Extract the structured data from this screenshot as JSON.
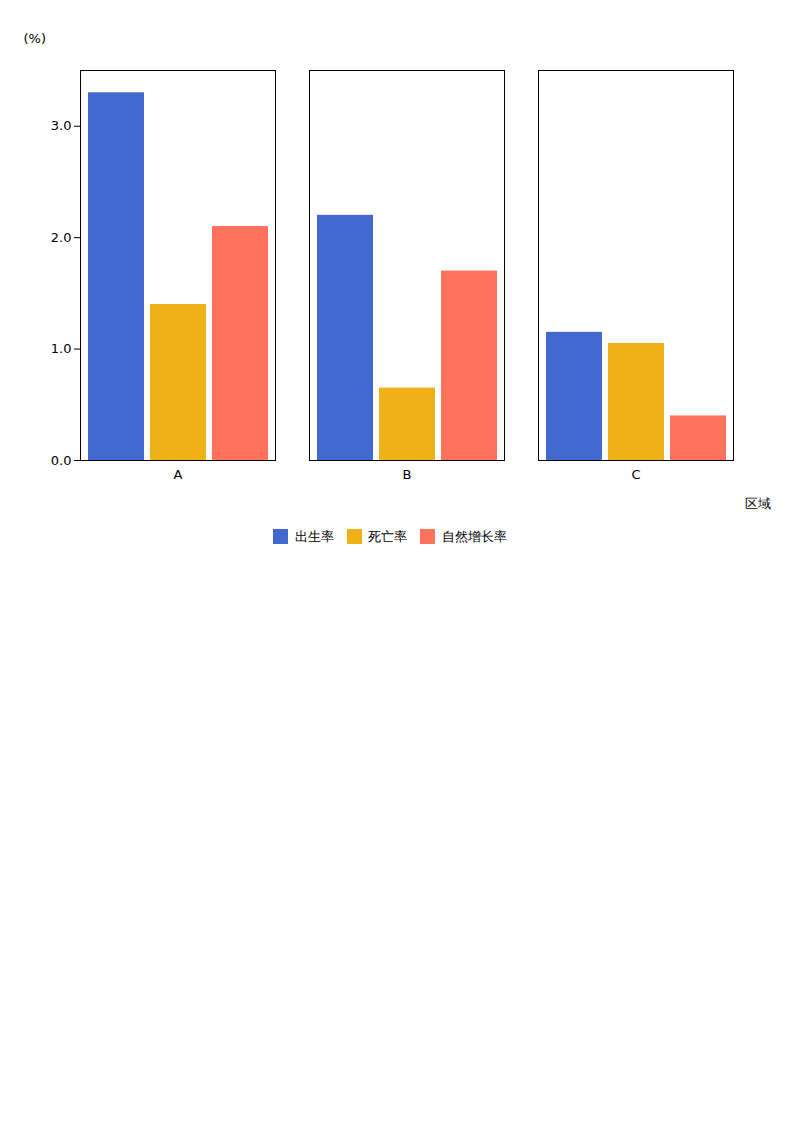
{
  "chart_data": {
    "type": "bar",
    "categories": [
      "A",
      "B",
      "C"
    ],
    "series": [
      {
        "name": "出生率",
        "values": [
          3.3,
          2.2,
          1.15
        ]
      },
      {
        "name": "死亡率",
        "values": [
          1.4,
          0.65,
          1.05
        ]
      },
      {
        "name": "自然增长率",
        "values": [
          2.1,
          1.7,
          0.4
        ]
      }
    ],
    "xlabel": "区域",
    "ylabel": "(%)",
    "ylim": [
      0,
      3.5
    ],
    "yticks": [
      0,
      1,
      2,
      3
    ],
    "grid": false,
    "legend": "bottom"
  }
}
